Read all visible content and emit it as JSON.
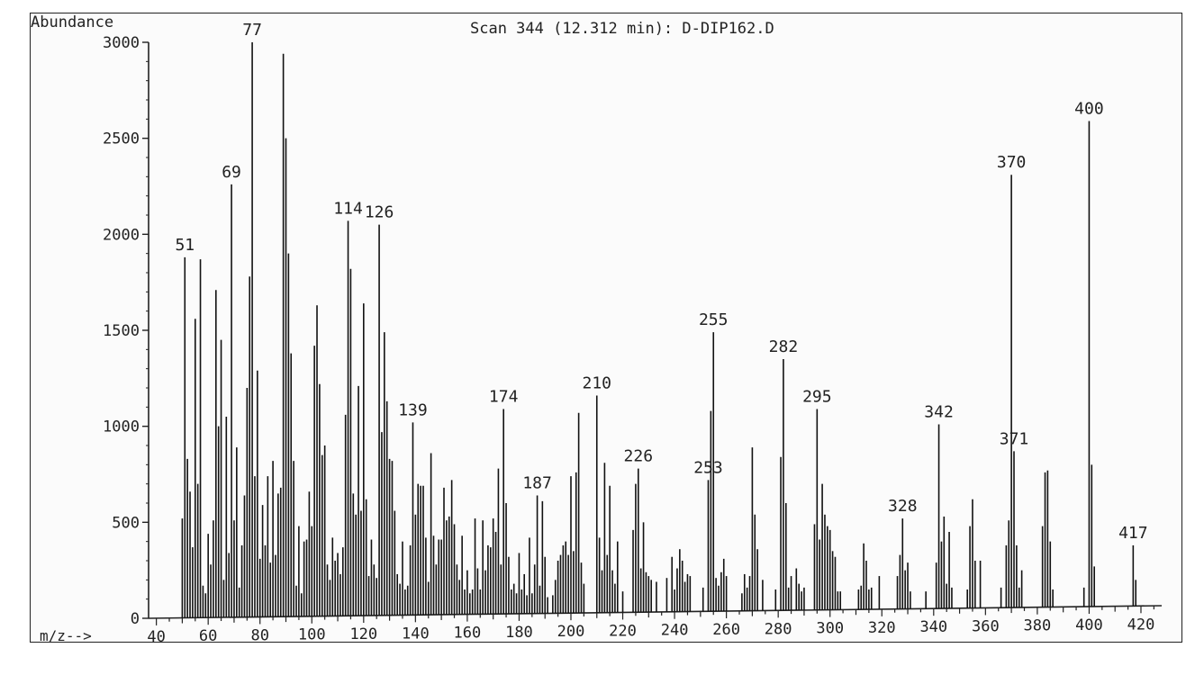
{
  "chart_data": {
    "type": "bar",
    "title": "Scan 344 (12.312 min): D-DIP162.D",
    "ylabel": "Abundance",
    "xlabel": "m/z-->",
    "xlim": [
      37,
      428
    ],
    "ylim": [
      0,
      3000
    ],
    "x_ticks": [
      40,
      60,
      80,
      100,
      120,
      140,
      160,
      180,
      200,
      220,
      240,
      260,
      280,
      300,
      320,
      340,
      360,
      380,
      400,
      420
    ],
    "y_ticks": [
      0,
      500,
      1000,
      1500,
      2000,
      2500,
      3000
    ],
    "peaks": [
      [
        50,
        520
      ],
      [
        51,
        1880
      ],
      [
        52,
        830
      ],
      [
        53,
        660
      ],
      [
        54,
        370
      ],
      [
        55,
        1560
      ],
      [
        56,
        700
      ],
      [
        57,
        1870
      ],
      [
        58,
        170
      ],
      [
        59,
        130
      ],
      [
        60,
        440
      ],
      [
        61,
        280
      ],
      [
        62,
        510
      ],
      [
        63,
        1710
      ],
      [
        64,
        1000
      ],
      [
        65,
        1450
      ],
      [
        66,
        200
      ],
      [
        67,
        1050
      ],
      [
        68,
        340
      ],
      [
        69,
        2260
      ],
      [
        70,
        510
      ],
      [
        71,
        890
      ],
      [
        72,
        160
      ],
      [
        73,
        380
      ],
      [
        74,
        640
      ],
      [
        75,
        1200
      ],
      [
        76,
        1780
      ],
      [
        77,
        3000
      ],
      [
        78,
        740
      ],
      [
        79,
        1290
      ],
      [
        80,
        310
      ],
      [
        81,
        590
      ],
      [
        82,
        380
      ],
      [
        83,
        740
      ],
      [
        84,
        290
      ],
      [
        85,
        820
      ],
      [
        86,
        330
      ],
      [
        87,
        650
      ],
      [
        88,
        680
      ],
      [
        89,
        2940
      ],
      [
        90,
        2500
      ],
      [
        91,
        1900
      ],
      [
        92,
        1380
      ],
      [
        93,
        820
      ],
      [
        94,
        170
      ],
      [
        95,
        480
      ],
      [
        96,
        130
      ],
      [
        97,
        400
      ],
      [
        98,
        410
      ],
      [
        99,
        660
      ],
      [
        100,
        480
      ],
      [
        101,
        1420
      ],
      [
        102,
        1630
      ],
      [
        103,
        1220
      ],
      [
        104,
        850
      ],
      [
        105,
        900
      ],
      [
        106,
        280
      ],
      [
        107,
        200
      ],
      [
        108,
        420
      ],
      [
        109,
        300
      ],
      [
        110,
        340
      ],
      [
        111,
        230
      ],
      [
        112,
        370
      ],
      [
        113,
        1060
      ],
      [
        114,
        2070
      ],
      [
        115,
        1820
      ],
      [
        116,
        650
      ],
      [
        117,
        540
      ],
      [
        118,
        1210
      ],
      [
        119,
        560
      ],
      [
        120,
        1640
      ],
      [
        121,
        620
      ],
      [
        122,
        220
      ],
      [
        123,
        410
      ],
      [
        124,
        280
      ],
      [
        125,
        210
      ],
      [
        126,
        2050
      ],
      [
        127,
        970
      ],
      [
        128,
        1490
      ],
      [
        129,
        1130
      ],
      [
        130,
        830
      ],
      [
        131,
        820
      ],
      [
        132,
        560
      ],
      [
        133,
        230
      ],
      [
        134,
        180
      ],
      [
        135,
        400
      ],
      [
        136,
        150
      ],
      [
        137,
        170
      ],
      [
        138,
        380
      ],
      [
        139,
        1020
      ],
      [
        140,
        540
      ],
      [
        141,
        700
      ],
      [
        142,
        690
      ],
      [
        143,
        690
      ],
      [
        144,
        420
      ],
      [
        145,
        190
      ],
      [
        146,
        860
      ],
      [
        147,
        430
      ],
      [
        148,
        280
      ],
      [
        149,
        410
      ],
      [
        150,
        410
      ],
      [
        151,
        680
      ],
      [
        152,
        510
      ],
      [
        153,
        530
      ],
      [
        154,
        720
      ],
      [
        155,
        490
      ],
      [
        156,
        280
      ],
      [
        157,
        200
      ],
      [
        158,
        430
      ],
      [
        159,
        150
      ],
      [
        160,
        250
      ],
      [
        161,
        130
      ],
      [
        162,
        150
      ],
      [
        163,
        520
      ],
      [
        164,
        260
      ],
      [
        165,
        150
      ],
      [
        166,
        510
      ],
      [
        167,
        250
      ],
      [
        168,
        380
      ],
      [
        169,
        370
      ],
      [
        170,
        520
      ],
      [
        171,
        450
      ],
      [
        172,
        780
      ],
      [
        173,
        280
      ],
      [
        174,
        1090
      ],
      [
        175,
        600
      ],
      [
        176,
        320
      ],
      [
        177,
        150
      ],
      [
        178,
        180
      ],
      [
        179,
        130
      ],
      [
        180,
        340
      ],
      [
        181,
        150
      ],
      [
        182,
        230
      ],
      [
        183,
        120
      ],
      [
        184,
        420
      ],
      [
        185,
        130
      ],
      [
        186,
        280
      ],
      [
        187,
        640
      ],
      [
        188,
        170
      ],
      [
        189,
        610
      ],
      [
        190,
        320
      ],
      [
        191,
        110
      ],
      [
        193,
        120
      ],
      [
        194,
        200
      ],
      [
        195,
        300
      ],
      [
        196,
        330
      ],
      [
        197,
        380
      ],
      [
        198,
        400
      ],
      [
        199,
        330
      ],
      [
        200,
        740
      ],
      [
        201,
        350
      ],
      [
        202,
        760
      ],
      [
        203,
        1070
      ],
      [
        204,
        290
      ],
      [
        205,
        180
      ],
      [
        210,
        1160
      ],
      [
        211,
        420
      ],
      [
        212,
        250
      ],
      [
        213,
        810
      ],
      [
        214,
        330
      ],
      [
        215,
        690
      ],
      [
        216,
        250
      ],
      [
        217,
        180
      ],
      [
        218,
        400
      ],
      [
        220,
        140
      ],
      [
        224,
        460
      ],
      [
        225,
        700
      ],
      [
        226,
        780
      ],
      [
        227,
        260
      ],
      [
        228,
        500
      ],
      [
        229,
        240
      ],
      [
        230,
        220
      ],
      [
        231,
        200
      ],
      [
        233,
        190
      ],
      [
        237,
        210
      ],
      [
        239,
        320
      ],
      [
        240,
        150
      ],
      [
        241,
        260
      ],
      [
        242,
        360
      ],
      [
        243,
        300
      ],
      [
        244,
        190
      ],
      [
        245,
        230
      ],
      [
        246,
        220
      ],
      [
        251,
        160
      ],
      [
        253,
        720
      ],
      [
        254,
        1080
      ],
      [
        255,
        1490
      ],
      [
        256,
        210
      ],
      [
        257,
        170
      ],
      [
        258,
        240
      ],
      [
        259,
        310
      ],
      [
        260,
        220
      ],
      [
        266,
        130
      ],
      [
        267,
        230
      ],
      [
        268,
        160
      ],
      [
        269,
        220
      ],
      [
        270,
        890
      ],
      [
        271,
        540
      ],
      [
        272,
        360
      ],
      [
        274,
        200
      ],
      [
        279,
        150
      ],
      [
        281,
        840
      ],
      [
        282,
        1350
      ],
      [
        283,
        600
      ],
      [
        284,
        160
      ],
      [
        285,
        220
      ],
      [
        287,
        260
      ],
      [
        288,
        180
      ],
      [
        289,
        140
      ],
      [
        290,
        160
      ],
      [
        294,
        490
      ],
      [
        295,
        1090
      ],
      [
        296,
        410
      ],
      [
        297,
        700
      ],
      [
        298,
        540
      ],
      [
        299,
        480
      ],
      [
        300,
        460
      ],
      [
        301,
        350
      ],
      [
        302,
        320
      ],
      [
        303,
        140
      ],
      [
        304,
        140
      ],
      [
        311,
        150
      ],
      [
        312,
        170
      ],
      [
        313,
        390
      ],
      [
        314,
        300
      ],
      [
        315,
        150
      ],
      [
        316,
        160
      ],
      [
        319,
        220
      ],
      [
        326,
        220
      ],
      [
        327,
        330
      ],
      [
        328,
        520
      ],
      [
        329,
        250
      ],
      [
        330,
        290
      ],
      [
        331,
        140
      ],
      [
        337,
        140
      ],
      [
        341,
        290
      ],
      [
        342,
        1010
      ],
      [
        343,
        400
      ],
      [
        344,
        530
      ],
      [
        345,
        180
      ],
      [
        346,
        450
      ],
      [
        347,
        160
      ],
      [
        353,
        150
      ],
      [
        354,
        480
      ],
      [
        355,
        620
      ],
      [
        356,
        300
      ],
      [
        358,
        300
      ],
      [
        366,
        160
      ],
      [
        368,
        380
      ],
      [
        369,
        510
      ],
      [
        370,
        2310
      ],
      [
        371,
        870
      ],
      [
        372,
        380
      ],
      [
        373,
        160
      ],
      [
        374,
        250
      ],
      [
        382,
        480
      ],
      [
        383,
        760
      ],
      [
        384,
        770
      ],
      [
        385,
        400
      ],
      [
        386,
        150
      ],
      [
        398,
        160
      ],
      [
        400,
        2590
      ],
      [
        401,
        800
      ],
      [
        402,
        270
      ],
      [
        417,
        380
      ],
      [
        418,
        200
      ]
    ],
    "labels": [
      {
        "x": 51,
        "y": 1880,
        "text": "51"
      },
      {
        "x": 69,
        "y": 2260,
        "text": "69"
      },
      {
        "x": 77,
        "y": 3000,
        "text": "77"
      },
      {
        "x": 114,
        "y": 2070,
        "text": "114"
      },
      {
        "x": 126,
        "y": 2050,
        "text": "126"
      },
      {
        "x": 139,
        "y": 1020,
        "text": "139"
      },
      {
        "x": 174,
        "y": 1090,
        "text": "174"
      },
      {
        "x": 187,
        "y": 640,
        "text": "187"
      },
      {
        "x": 210,
        "y": 1160,
        "text": "210"
      },
      {
        "x": 226,
        "y": 780,
        "text": "226"
      },
      {
        "x": 253,
        "y": 720,
        "text": "253"
      },
      {
        "x": 255,
        "y": 1490,
        "text": "255"
      },
      {
        "x": 282,
        "y": 1350,
        "text": "282"
      },
      {
        "x": 295,
        "y": 1090,
        "text": "295"
      },
      {
        "x": 328,
        "y": 520,
        "text": "328"
      },
      {
        "x": 342,
        "y": 1010,
        "text": "342"
      },
      {
        "x": 370,
        "y": 2310,
        "text": "370"
      },
      {
        "x": 371,
        "y": 870,
        "text": "371"
      },
      {
        "x": 400,
        "y": 2590,
        "text": "400"
      },
      {
        "x": 417,
        "y": 380,
        "text": "417"
      }
    ]
  }
}
